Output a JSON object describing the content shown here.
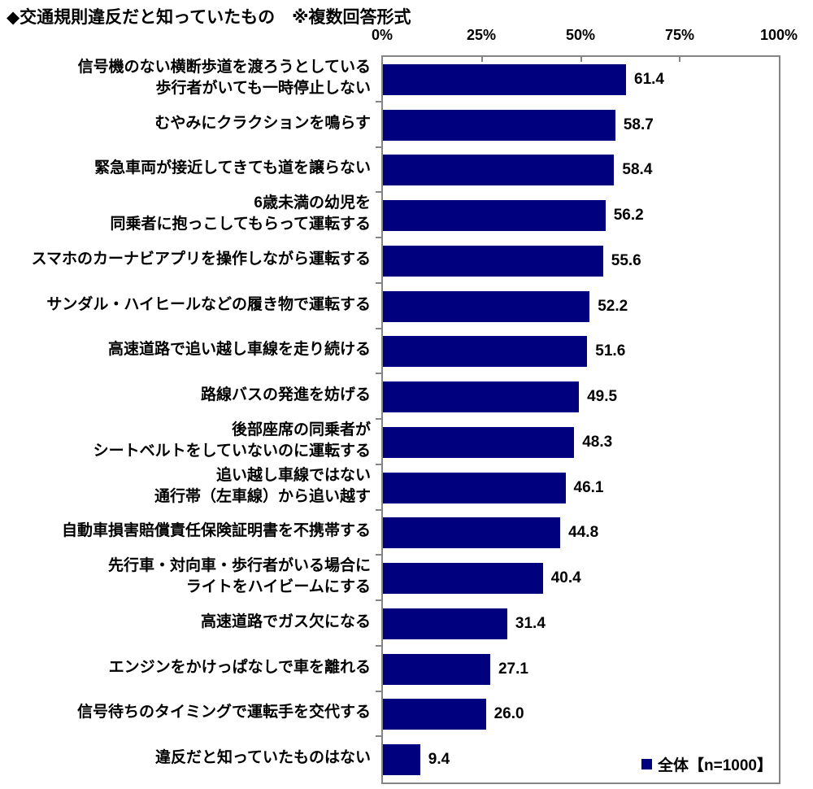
{
  "title": "◆交通規則違反だと知っていたもの　※複数回答形式",
  "axis": {
    "tick_labels": [
      "0%",
      "25%",
      "50%",
      "75%",
      "100%"
    ]
  },
  "legend": {
    "label": "全体【n=1000】",
    "marker_color": "#00007E"
  },
  "colors": {
    "bar": "#00007E",
    "plot_border": "#848484",
    "text": "#000000",
    "background": "#ffffff"
  },
  "chart_data": {
    "type": "bar",
    "orientation": "horizontal",
    "title": "◆交通規則違反だと知っていたもの　※複数回答形式",
    "legend_entries": [
      "全体【n=1000】"
    ],
    "legend_position": "bottom-right-inside",
    "xlim": [
      0,
      100
    ],
    "x_ticks": [
      0,
      25,
      50,
      75,
      100
    ],
    "x_tick_labels": [
      "0%",
      "25%",
      "50%",
      "75%",
      "100%"
    ],
    "grid": false,
    "categories": [
      "信号機のない横断歩道を渡ろうとしている\n歩行者がいても一時停止しない",
      "むやみにクラクションを鳴らす",
      "緊急車両が接近してきても道を譲らない",
      "6歳未満の幼児を\n同乗者に抱っこしてもらって運転する",
      "スマホのカーナビアプリを操作しながら運転する",
      "サンダル・ハイヒールなどの履き物で運転する",
      "高速道路で追い越し車線を走り続ける",
      "路線バスの発進を妨げる",
      "後部座席の同乗者が\nシートベルトをしていないのに運転する",
      "追い越し車線ではない\n通行帯（左車線）から追い越す",
      "自動車損害賠償責任保険証明書を不携帯する",
      "先行車・対向車・歩行者がいる場合に\nライトをハイビームにする",
      "高速道路でガス欠になる",
      "エンジンをかけっぱなしで車を離れる",
      "信号待ちのタイミングで運転手を交代する",
      "違反だと知っていたものはない"
    ],
    "values": [
      61.4,
      58.7,
      58.4,
      56.2,
      55.6,
      52.2,
      51.6,
      49.5,
      48.3,
      46.1,
      44.8,
      40.4,
      31.4,
      27.1,
      26.0,
      9.4
    ],
    "value_labels": [
      "61.4",
      "58.7",
      "58.4",
      "56.2",
      "55.6",
      "52.2",
      "51.6",
      "49.5",
      "48.3",
      "46.1",
      "44.8",
      "40.4",
      "31.4",
      "27.1",
      "26.0",
      "9.4"
    ]
  }
}
